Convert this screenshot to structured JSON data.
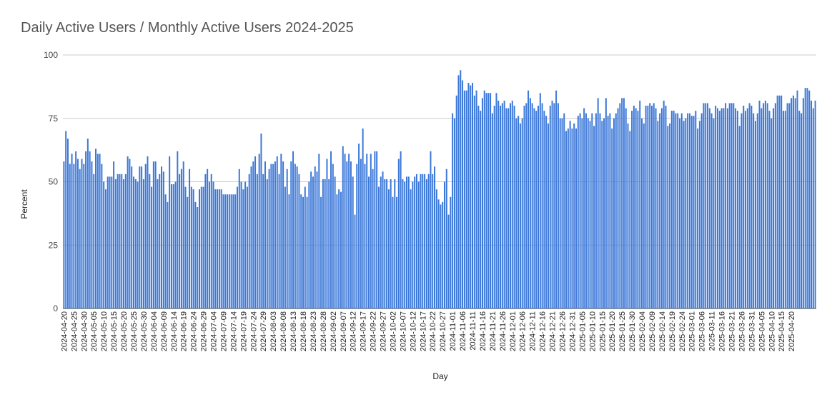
{
  "chart_data": {
    "type": "bar",
    "title": "Daily Active Users / Monthly Active Users 2024-2025",
    "xlabel": "Day",
    "ylabel": "Percent",
    "ylim": [
      0,
      100
    ],
    "yticks": [
      0,
      25,
      50,
      75,
      100
    ],
    "grid": true,
    "legend": "none",
    "bar_color": "#3c78d8",
    "start_date": "2024-04-20",
    "end_date": "2025-04-20",
    "tick_every_days": 5,
    "series": [
      {
        "values": [
          58,
          70,
          67,
          57,
          61,
          57,
          62,
          59,
          55,
          59,
          57,
          62,
          67,
          62,
          58,
          53,
          63,
          61,
          61,
          57,
          50,
          47,
          52,
          52,
          52,
          58,
          51,
          53,
          53,
          53,
          51,
          53,
          60,
          59,
          56,
          52,
          51,
          50,
          56,
          56,
          51,
          57,
          60,
          53,
          48,
          58,
          58,
          51,
          53,
          56,
          54,
          45,
          42,
          60,
          49,
          49,
          50,
          62,
          53,
          55,
          58,
          48,
          44,
          55,
          48,
          47,
          42,
          40,
          47,
          48,
          48,
          53,
          55,
          50,
          53,
          50,
          47,
          47,
          47,
          47,
          45,
          45,
          45,
          45,
          45,
          45,
          45,
          48,
          55,
          50,
          47,
          50,
          48,
          53,
          56,
          58,
          60,
          53,
          61,
          69,
          53,
          58,
          51,
          55,
          57,
          57,
          58,
          60,
          53,
          61,
          58,
          48,
          55,
          45,
          58,
          62,
          57,
          56,
          53,
          45,
          44,
          48,
          44,
          50,
          54,
          52,
          56,
          54,
          61,
          44,
          51,
          51,
          59,
          51,
          62,
          57,
          52,
          45,
          47,
          46,
          64,
          61,
          58,
          61,
          58,
          52,
          37,
          57,
          65,
          59,
          71,
          57,
          61,
          52,
          61,
          55,
          62,
          62,
          48,
          52,
          54,
          51,
          51,
          47,
          51,
          44,
          51,
          44,
          59,
          62,
          51,
          50,
          52,
          52,
          47,
          50,
          52,
          53,
          50,
          53,
          53,
          53,
          51,
          53,
          62,
          53,
          56,
          47,
          43,
          41,
          42,
          50,
          55,
          37,
          44,
          77,
          75,
          84,
          92,
          94,
          90,
          86,
          86,
          89,
          88,
          89,
          84,
          86,
          80,
          78,
          83,
          86,
          85,
          85,
          85,
          77,
          80,
          85,
          82,
          80,
          81,
          82,
          79,
          79,
          81,
          82,
          80,
          75,
          76,
          73,
          75,
          80,
          81,
          86,
          83,
          81,
          79,
          78,
          80,
          85,
          81,
          78,
          76,
          73,
          80,
          82,
          81,
          86,
          81,
          75,
          75,
          77,
          70,
          71,
          74,
          71,
          73,
          71,
          76,
          77,
          75,
          79,
          77,
          75,
          74,
          77,
          72,
          77,
          83,
          77,
          74,
          75,
          83,
          76,
          77,
          71,
          75,
          77,
          79,
          81,
          83,
          83,
          79,
          73,
          70,
          78,
          80,
          79,
          78,
          82,
          75,
          73,
          80,
          80,
          81,
          80,
          81,
          79,
          74,
          77,
          79,
          82,
          80,
          72,
          73,
          78,
          78,
          77,
          77,
          75,
          77,
          74,
          75,
          77,
          77,
          76,
          76,
          78,
          71,
          74,
          77,
          81,
          81,
          81,
          79,
          77,
          75,
          80,
          79,
          78,
          79,
          79,
          81,
          79,
          81,
          81,
          81,
          79,
          78,
          72,
          77,
          80,
          78,
          79,
          81,
          80,
          77,
          74,
          77,
          82,
          79,
          81,
          82,
          81,
          78,
          75,
          79,
          81,
          84,
          84,
          84,
          78,
          78,
          81,
          81,
          83,
          84,
          83,
          86,
          78,
          77,
          83,
          87,
          87,
          86,
          82,
          79,
          82
        ]
      }
    ],
    "x_tick_labels": [
      "2024-04-20",
      "2024-04-25",
      "2024-04-30",
      "2024-05-05",
      "2024-05-10",
      "2024-05-15",
      "2024-05-20",
      "2024-05-25",
      "2024-05-30",
      "2024-06-04",
      "2024-06-09",
      "2024-06-14",
      "2024-06-19",
      "2024-06-24",
      "2024-06-29",
      "2024-07-04",
      "2024-07-09",
      "2024-07-14",
      "2024-07-19",
      "2024-07-24",
      "2024-07-29",
      "2024-08-03",
      "2024-08-08",
      "2024-08-13",
      "2024-08-18",
      "2024-08-23",
      "2024-08-28",
      "2024-09-02",
      "2024-09-07",
      "2024-09-12",
      "2024-09-17",
      "2024-09-22",
      "2024-09-27",
      "2024-10-02",
      "2024-10-07",
      "2024-10-12",
      "2024-10-17",
      "2024-10-22",
      "2024-10-27",
      "2024-11-01",
      "2024-11-06",
      "2024-11-11",
      "2024-11-16",
      "2024-11-21",
      "2024-11-26",
      "2024-12-01",
      "2024-12-06",
      "2024-12-11",
      "2024-12-16",
      "2024-12-21",
      "2024-12-26",
      "2024-12-31",
      "2025-01-05",
      "2025-01-10",
      "2025-01-15",
      "2025-01-20",
      "2025-01-25",
      "2025-01-30",
      "2025-02-04",
      "2025-02-09",
      "2025-02-14",
      "2025-02-19",
      "2025-02-24",
      "2025-03-01",
      "2025-03-06",
      "2025-03-11",
      "2025-03-16",
      "2025-03-21",
      "2025-03-26",
      "2025-03-31",
      "2025-04-05",
      "2025-04-10",
      "2025-04-15",
      "2025-04-20"
    ]
  }
}
